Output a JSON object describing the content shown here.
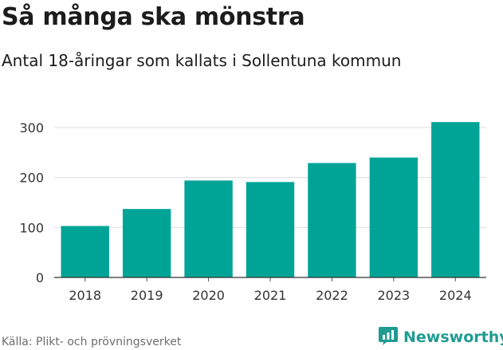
{
  "chart_data": {
    "type": "bar",
    "title": "Så många ska mönstra",
    "subtitle": "Antal 18-åringar som kallats i Sollentuna kommun",
    "categories": [
      "2018",
      "2019",
      "2020",
      "2021",
      "2022",
      "2023",
      "2024"
    ],
    "values": [
      103,
      137,
      194,
      191,
      229,
      240,
      311
    ],
    "xlabel": "",
    "ylabel": "",
    "ylim": [
      0,
      300
    ],
    "yticks": [
      0,
      100,
      200,
      300
    ],
    "grid": true,
    "bar_color": "#00a497"
  },
  "source": "Källa: Plikt- och prövningsverket",
  "brand": {
    "name": "Newsworthy",
    "icon": "newsworthy-logo-icon",
    "color": "#1f9b92"
  }
}
